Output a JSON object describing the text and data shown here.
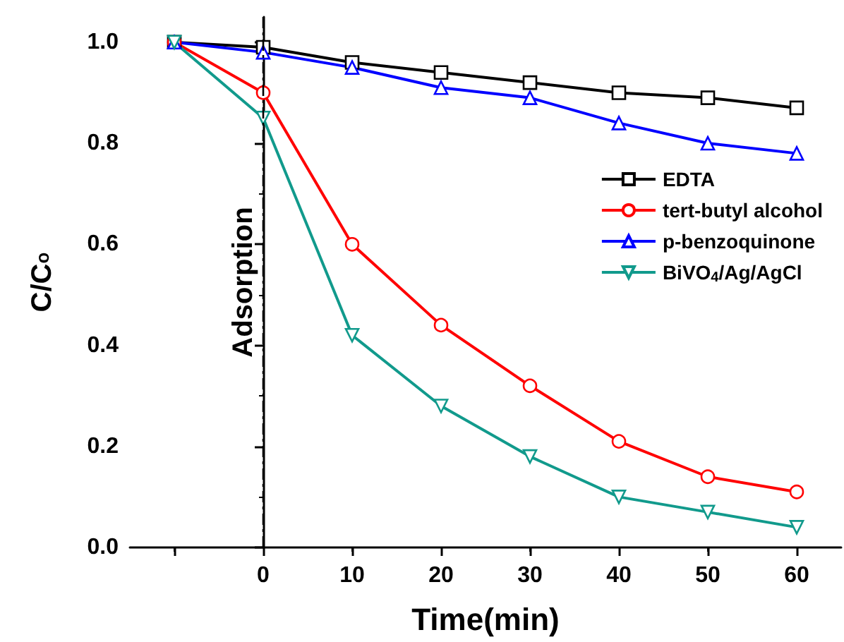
{
  "chart_data": {
    "type": "line",
    "xlabel": "Time(min)",
    "ylabel": "C/C$_{o}$",
    "x": [
      -10,
      0,
      10,
      20,
      30,
      40,
      50,
      60
    ],
    "series": [
      {
        "name": "EDTA",
        "color": "#000000",
        "marker": "square",
        "values": [
          1.0,
          0.99,
          0.96,
          0.94,
          0.92,
          0.9,
          0.89,
          0.87
        ]
      },
      {
        "name": "tert-butyl alcohol",
        "color": "#ff0000",
        "marker": "circle",
        "values": [
          1.0,
          0.9,
          0.6,
          0.44,
          0.32,
          0.21,
          0.14,
          0.11
        ]
      },
      {
        "name": "p-benzoquinone",
        "color": "#0000ff",
        "marker": "triangle",
        "values": [
          1.0,
          0.98,
          0.95,
          0.91,
          0.89,
          0.84,
          0.8,
          0.78
        ]
      },
      {
        "name": "BiVO$_{4}$/Ag/AgCl",
        "color": "#119a8c",
        "marker": "triangle-down",
        "values": [
          1.0,
          0.85,
          0.42,
          0.28,
          0.18,
          0.1,
          0.07,
          0.04
        ]
      }
    ],
    "xlim": [
      -15,
      65
    ],
    "xticks": [
      {
        "value": -10,
        "label": null
      },
      0,
      10,
      20,
      30,
      40,
      50,
      60
    ],
    "ylim": [
      0,
      1.05
    ],
    "yticks": [
      {
        "value": 0,
        "label": "0.0"
      },
      {
        "value": 0.2,
        "label": "0.2"
      },
      {
        "value": 0.4,
        "label": "0.4"
      },
      {
        "value": 0.6,
        "label": "0.6"
      },
      {
        "value": 0.8,
        "label": "0.8"
      },
      {
        "value": 1,
        "label": "1.0"
      }
    ],
    "ref_lines": [
      {
        "axis": "x",
        "value": 0,
        "label": "Adsorption",
        "color": "#000000",
        "line_style": "dashdot"
      }
    ],
    "legend": "right",
    "grid": false
  }
}
